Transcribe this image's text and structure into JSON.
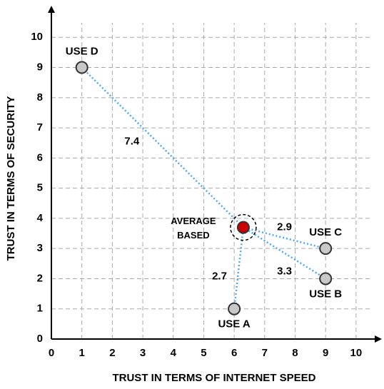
{
  "chart_data": {
    "type": "scatter",
    "xlabel": "TRUST IN TERMS OF INTERNET SPEED",
    "ylabel": "TRUST IN TERMS OF SECURITY",
    "xlim": [
      0,
      10.8
    ],
    "ylim": [
      0,
      11
    ],
    "xticks": [
      0,
      1,
      2,
      3,
      4,
      5,
      6,
      7,
      8,
      9,
      10
    ],
    "yticks": [
      0,
      1,
      2,
      3,
      4,
      5,
      6,
      7,
      8,
      9,
      10
    ],
    "grid": true,
    "points": {
      "labels": [
        "USE A",
        "USE B",
        "USE C",
        "USE D"
      ],
      "x": [
        6,
        9,
        9,
        1
      ],
      "y": [
        1,
        2,
        3,
        9
      ],
      "distances": [
        2.7,
        3.3,
        2.9,
        7.4
      ],
      "color": "#c8c8c8",
      "line_color": "#4da6ff"
    },
    "center": {
      "label": [
        "AVERAGE",
        "BASED"
      ],
      "x": 6.3,
      "y": 3.7,
      "color": "#cc0000"
    }
  }
}
